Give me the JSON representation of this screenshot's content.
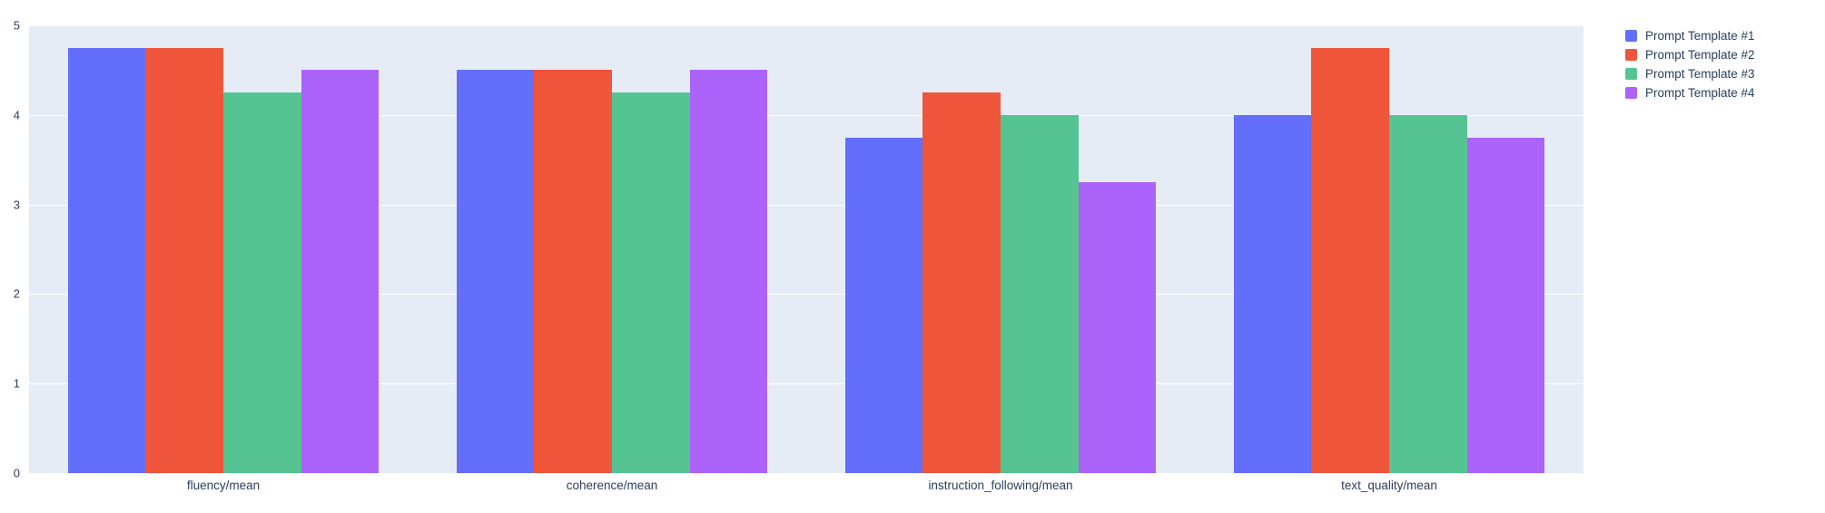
{
  "chart_data": {
    "type": "bar",
    "title": "",
    "xlabel": "",
    "ylabel": "",
    "ylim": [
      0,
      5
    ],
    "yticks": [
      0,
      1,
      2,
      3,
      4,
      5
    ],
    "grid": true,
    "legend_position": "top-right",
    "plot_background_color": "#e5ecf6",
    "grid_color": "#ffffff",
    "text_color": "#2a3f5f",
    "categories": [
      "fluency/mean",
      "coherence/mean",
      "instruction_following/mean",
      "text_quality/mean"
    ],
    "series": [
      {
        "name": "Prompt Template #1",
        "color": "#636efa",
        "values": [
          4.75,
          4.5,
          3.75,
          4.0
        ]
      },
      {
        "name": "Prompt Template #2",
        "color": "#ef553b",
        "values": [
          4.75,
          4.5,
          4.25,
          4.75
        ]
      },
      {
        "name": "Prompt Template #3",
        "color": "#55c492",
        "values": [
          4.25,
          4.25,
          4.0,
          4.0
        ]
      },
      {
        "name": "Prompt Template #4",
        "color": "#ab63fa",
        "values": [
          4.5,
          4.5,
          3.25,
          3.75
        ]
      }
    ]
  }
}
